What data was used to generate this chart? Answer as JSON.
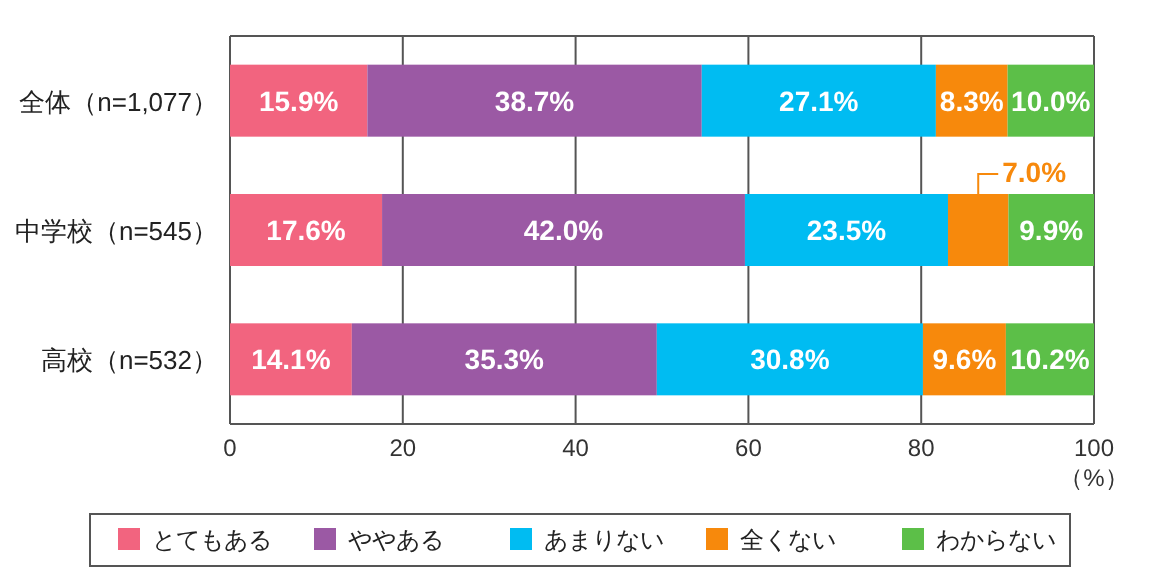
{
  "chart_data": {
    "type": "bar",
    "orientation": "horizontal",
    "stacked": true,
    "categories": [
      "全体（n=1,077）",
      "中学校（n=545）",
      "高校（n=532）"
    ],
    "series": [
      {
        "name": "とてもある",
        "color": "#f2647f",
        "values": [
          15.9,
          17.6,
          14.1
        ],
        "value_labels": [
          "15.9%",
          "17.6%",
          "14.1%"
        ]
      },
      {
        "name": "ややある",
        "color": "#9b59a4",
        "values": [
          38.7,
          42.0,
          35.3
        ],
        "value_labels": [
          "38.7%",
          "42.0%",
          "35.3%"
        ]
      },
      {
        "name": "あまりない",
        "color": "#00bcf2",
        "values": [
          27.1,
          23.5,
          30.8
        ],
        "value_labels": [
          "27.1%",
          "23.5%",
          "30.8%"
        ]
      },
      {
        "name": "全くない",
        "color": "#f7890c",
        "values": [
          8.3,
          7.0,
          9.6
        ],
        "value_labels": [
          "8.3%",
          "7.0%",
          "9.6%"
        ]
      },
      {
        "name": "わからない",
        "color": "#5cbf48",
        "values": [
          10.0,
          9.9,
          10.2
        ],
        "value_labels": [
          "10.0%",
          "9.9%",
          "10.2%"
        ]
      }
    ],
    "xlim": [
      0,
      100
    ],
    "xticks": [
      0,
      20,
      40,
      60,
      80,
      100
    ],
    "xlabel": "（%）",
    "grid": "x",
    "legend": "bottom"
  }
}
